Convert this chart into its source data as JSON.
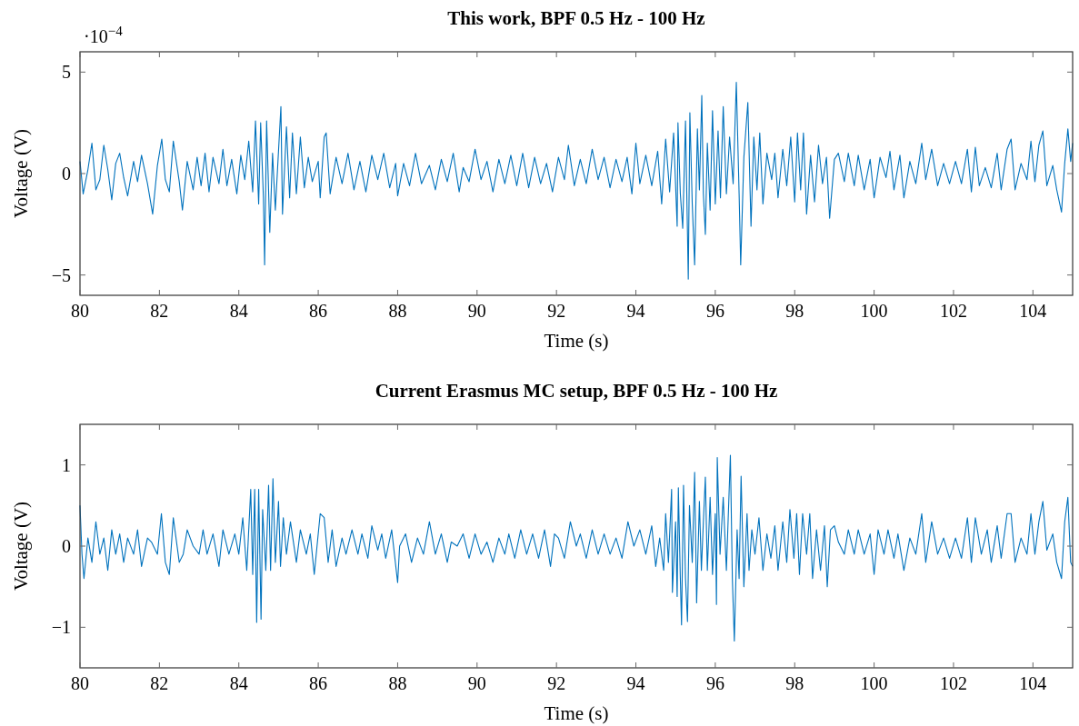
{
  "chart_data": [
    {
      "type": "line",
      "title": "This work, BPF 0.5 Hz - 100 Hz",
      "xlabel": "Time (s)",
      "ylabel": "Voltage (V)",
      "annotations": [
        "·10$^{−4}$"
      ],
      "xlim": [
        80,
        105
      ],
      "xticks": [
        80,
        82,
        84,
        86,
        88,
        90,
        92,
        94,
        96,
        98,
        100,
        102,
        104
      ],
      "ylim": [
        -6,
        6
      ],
      "yticks": [
        -5,
        0,
        5
      ],
      "x": [
        80.0,
        80.08,
        80.2,
        80.3,
        80.4,
        80.5,
        80.6,
        80.7,
        80.8,
        80.9,
        81.0,
        81.1,
        81.2,
        81.35,
        81.45,
        81.55,
        81.7,
        81.83,
        81.95,
        82.06,
        82.15,
        82.25,
        82.35,
        82.5,
        82.58,
        82.7,
        82.85,
        82.95,
        83.05,
        83.15,
        83.25,
        83.35,
        83.5,
        83.6,
        83.7,
        83.82,
        83.95,
        84.05,
        84.15,
        84.25,
        84.35,
        84.42,
        84.5,
        84.55,
        84.62,
        84.65,
        84.7,
        84.78,
        84.85,
        84.92,
        85.06,
        85.1,
        85.2,
        85.28,
        85.35,
        85.45,
        85.55,
        85.65,
        85.75,
        85.85,
        86.0,
        86.05,
        86.15,
        86.2,
        86.3,
        86.45,
        86.6,
        86.75,
        86.9,
        87.05,
        87.2,
        87.35,
        87.5,
        87.65,
        87.8,
        87.95,
        88.0,
        88.15,
        88.3,
        88.45,
        88.6,
        88.8,
        88.95,
        89.1,
        89.25,
        89.4,
        89.55,
        89.65,
        89.8,
        89.95,
        90.1,
        90.25,
        90.4,
        90.55,
        90.7,
        90.85,
        91.0,
        91.15,
        91.3,
        91.45,
        91.6,
        91.75,
        91.9,
        92.05,
        92.2,
        92.3,
        92.45,
        92.6,
        92.75,
        92.9,
        93.05,
        93.2,
        93.35,
        93.5,
        93.65,
        93.78,
        93.9,
        94.0,
        94.1,
        94.25,
        94.4,
        94.55,
        94.65,
        94.75,
        94.85,
        94.95,
        95.04,
        95.06,
        95.12,
        95.18,
        95.25,
        95.32,
        95.36,
        95.42,
        95.48,
        95.55,
        95.6,
        95.66,
        95.7,
        95.75,
        95.8,
        95.87,
        95.93,
        96.0,
        96.07,
        96.13,
        96.2,
        96.28,
        96.36,
        96.45,
        96.53,
        96.6,
        96.64,
        96.72,
        96.82,
        96.9,
        96.97,
        97.05,
        97.12,
        97.2,
        97.3,
        97.42,
        97.5,
        97.58,
        97.7,
        97.8,
        97.9,
        98.0,
        98.07,
        98.15,
        98.22,
        98.3,
        98.4,
        98.5,
        98.6,
        98.7,
        98.8,
        98.88,
        99.0,
        99.1,
        99.25,
        99.35,
        99.5,
        99.6,
        99.75,
        99.9,
        100.0,
        100.15,
        100.3,
        100.4,
        100.5,
        100.65,
        100.75,
        100.9,
        101.05,
        101.2,
        101.3,
        101.45,
        101.6,
        101.75,
        101.9,
        102.05,
        102.2,
        102.35,
        102.45,
        102.55,
        102.65,
        102.8,
        102.95,
        103.1,
        103.2,
        103.35,
        103.45,
        103.55,
        103.7,
        103.85,
        103.95,
        104.05,
        104.15,
        104.25,
        104.35,
        104.5,
        104.6,
        104.72,
        104.8,
        104.88,
        104.95,
        105.0
      ],
      "series": [
        {
          "color": "#0072bd",
          "values": [
            0.6,
            -1.0,
            0.2,
            1.5,
            -0.8,
            -0.3,
            1.4,
            0.2,
            -1.3,
            0.5,
            1.0,
            -0.2,
            -1.1,
            0.6,
            -0.4,
            0.9,
            -0.5,
            -2.0,
            0.4,
            1.7,
            -0.3,
            -0.9,
            1.6,
            -0.4,
            -1.8,
            0.6,
            -0.8,
            0.8,
            -0.6,
            1.0,
            -0.9,
            0.8,
            -0.5,
            1.2,
            -0.6,
            0.7,
            -1.0,
            0.9,
            -0.3,
            1.6,
            -0.9,
            2.6,
            -1.5,
            2.5,
            -1.2,
            -4.5,
            2.6,
            -2.9,
            1.0,
            -1.8,
            3.3,
            -2.0,
            2.3,
            -1.2,
            2.0,
            -1.0,
            1.8,
            -0.7,
            0.8,
            -0.4,
            0.6,
            -1.2,
            1.8,
            2.0,
            -1.0,
            0.8,
            -0.5,
            1.0,
            -0.8,
            0.6,
            -0.9,
            0.9,
            -0.3,
            1.0,
            -0.7,
            0.5,
            -1.1,
            0.5,
            -0.6,
            1.0,
            -0.5,
            0.4,
            -0.8,
            0.7,
            -0.4,
            1.0,
            -0.9,
            0.3,
            -0.4,
            1.2,
            -0.3,
            0.6,
            -0.9,
            0.7,
            -0.5,
            0.9,
            -0.6,
            1.0,
            -0.7,
            0.8,
            -0.5,
            0.5,
            -0.9,
            0.8,
            -0.3,
            1.4,
            -0.6,
            0.7,
            -0.5,
            1.2,
            -0.3,
            0.8,
            -0.7,
            0.7,
            -0.4,
            0.8,
            -1.0,
            1.5,
            -0.5,
            0.9,
            -0.6,
            1.1,
            -1.5,
            1.7,
            -0.9,
            2.0,
            -2.6,
            2.5,
            -1.0,
            -2.7,
            2.6,
            -5.2,
            3.0,
            -1.5,
            -4.5,
            2.2,
            -0.8,
            3.85,
            -1.0,
            -3.0,
            1.5,
            -1.8,
            3.1,
            -1.5,
            2.1,
            -1.2,
            3.3,
            -1.0,
            1.8,
            -0.5,
            4.5,
            -1.0,
            -4.5,
            0.8,
            3.5,
            -2.6,
            1.8,
            -0.8,
            2.0,
            -1.5,
            1.0,
            -0.3,
            1.0,
            -1.2,
            1.2,
            -0.6,
            1.8,
            -1.4,
            2.0,
            -0.8,
            2.0,
            -2.0,
            0.9,
            -1.4,
            1.4,
            -0.5,
            0.8,
            -2.2,
            0.7,
            1.0,
            -0.4,
            1.0,
            -0.6,
            0.9,
            -0.8,
            0.7,
            -1.2,
            0.8,
            -0.2,
            1.1,
            -0.8,
            0.9,
            -1.2,
            0.6,
            -0.5,
            1.5,
            -0.3,
            1.2,
            -0.6,
            0.5,
            -0.5,
            0.6,
            -0.5,
            1.2,
            -0.9,
            1.3,
            -0.6,
            0.3,
            -0.7,
            1.0,
            -0.8,
            1.2,
            1.7,
            -0.8,
            0.5,
            -0.3,
            1.6,
            -0.4,
            1.4,
            2.1,
            -0.6,
            0.4,
            -0.8,
            -1.9,
            0.5,
            2.2,
            0.6,
            1.5
          ]
        }
      ]
    },
    {
      "type": "line",
      "title": "Current Erasmus MC setup, BPF 0.5 Hz - 100 Hz",
      "xlabel": "Time (s)",
      "ylabel": "Voltage (V)",
      "xlim": [
        80,
        105
      ],
      "xticks": [
        80,
        82,
        84,
        86,
        88,
        90,
        92,
        94,
        96,
        98,
        100,
        102,
        104
      ],
      "ylim": [
        -1.5,
        1.5
      ],
      "yticks": [
        -1,
        0,
        1
      ],
      "x": [
        80.0,
        80.05,
        80.1,
        80.2,
        80.3,
        80.4,
        80.5,
        80.6,
        80.7,
        80.8,
        80.9,
        81.0,
        81.1,
        81.2,
        81.35,
        81.45,
        81.55,
        81.7,
        81.8,
        81.95,
        82.05,
        82.15,
        82.25,
        82.35,
        82.5,
        82.6,
        82.7,
        82.85,
        83.0,
        83.1,
        83.2,
        83.35,
        83.5,
        83.6,
        83.75,
        83.9,
        84.0,
        84.1,
        84.2,
        84.3,
        84.35,
        84.4,
        84.45,
        84.5,
        84.56,
        84.6,
        84.68,
        84.75,
        84.8,
        84.86,
        84.92,
        85.0,
        85.05,
        85.12,
        85.2,
        85.3,
        85.45,
        85.55,
        85.7,
        85.8,
        85.9,
        86.05,
        86.15,
        86.25,
        86.35,
        86.45,
        86.6,
        86.7,
        86.85,
        87.0,
        87.1,
        87.25,
        87.35,
        87.5,
        87.6,
        87.7,
        87.85,
        88.0,
        88.05,
        88.2,
        88.35,
        88.5,
        88.65,
        88.8,
        88.95,
        89.1,
        89.25,
        89.35,
        89.5,
        89.65,
        89.8,
        89.95,
        90.1,
        90.25,
        90.4,
        90.55,
        90.7,
        90.8,
        90.95,
        91.1,
        91.25,
        91.4,
        91.55,
        91.7,
        91.85,
        91.95,
        92.05,
        92.2,
        92.35,
        92.5,
        92.6,
        92.75,
        92.9,
        93.05,
        93.2,
        93.35,
        93.5,
        93.65,
        93.8,
        93.95,
        94.1,
        94.25,
        94.4,
        94.5,
        94.6,
        94.7,
        94.75,
        94.82,
        94.9,
        94.92,
        95.0,
        95.04,
        95.07,
        95.12,
        95.15,
        95.2,
        95.25,
        95.3,
        95.35,
        95.42,
        95.48,
        95.53,
        95.6,
        95.65,
        95.7,
        95.75,
        95.8,
        95.87,
        95.93,
        96.0,
        96.03,
        96.05,
        96.12,
        96.2,
        96.28,
        96.38,
        96.43,
        96.48,
        96.55,
        96.6,
        96.65,
        96.72,
        96.8,
        96.85,
        96.92,
        97.0,
        97.1,
        97.2,
        97.3,
        97.4,
        97.5,
        97.58,
        97.7,
        97.8,
        97.88,
        97.98,
        98.05,
        98.12,
        98.2,
        98.3,
        98.38,
        98.45,
        98.55,
        98.65,
        98.75,
        98.82,
        98.9,
        99.0,
        99.1,
        99.25,
        99.35,
        99.5,
        99.6,
        99.75,
        99.9,
        100.0,
        100.1,
        100.25,
        100.35,
        100.5,
        100.6,
        100.75,
        100.9,
        101.05,
        101.2,
        101.3,
        101.45,
        101.6,
        101.75,
        101.9,
        102.05,
        102.2,
        102.35,
        102.45,
        102.55,
        102.7,
        102.85,
        102.95,
        103.1,
        103.2,
        103.35,
        103.45,
        103.55,
        103.7,
        103.85,
        103.95,
        104.05,
        104.15,
        104.25,
        104.35,
        104.5,
        104.6,
        104.72,
        104.8,
        104.88,
        104.95,
        105.0
      ],
      "series": [
        {
          "color": "#0072bd",
          "values": [
            0.5,
            -0.1,
            -0.4,
            0.1,
            -0.2,
            0.3,
            -0.1,
            0.1,
            -0.3,
            0.2,
            -0.1,
            0.15,
            -0.2,
            0.1,
            -0.1,
            0.2,
            -0.25,
            0.1,
            0.05,
            -0.1,
            0.4,
            -0.2,
            -0.35,
            0.35,
            -0.2,
            -0.1,
            0.2,
            0.0,
            -0.1,
            0.2,
            -0.1,
            0.15,
            -0.25,
            0.2,
            -0.1,
            0.15,
            -0.1,
            0.35,
            -0.3,
            0.7,
            -0.35,
            0.7,
            -0.94,
            0.7,
            -0.9,
            0.45,
            -0.3,
            0.75,
            -0.3,
            0.83,
            -0.2,
            0.55,
            -0.25,
            0.35,
            -0.1,
            0.3,
            -0.2,
            0.2,
            -0.1,
            0.15,
            -0.35,
            0.4,
            0.35,
            -0.2,
            0.2,
            -0.25,
            0.1,
            -0.1,
            0.2,
            -0.1,
            0.15,
            -0.15,
            0.25,
            -0.05,
            0.15,
            -0.15,
            0.2,
            -0.45,
            0.0,
            0.15,
            -0.2,
            0.1,
            -0.1,
            0.3,
            -0.1,
            0.15,
            -0.2,
            0.05,
            0.0,
            0.15,
            -0.15,
            0.15,
            -0.1,
            0.05,
            -0.2,
            0.1,
            -0.1,
            0.15,
            -0.15,
            0.2,
            -0.1,
            0.15,
            -0.15,
            0.2,
            -0.25,
            0.15,
            0.1,
            -0.15,
            0.3,
            0.0,
            0.15,
            -0.15,
            0.2,
            -0.1,
            0.15,
            -0.1,
            0.1,
            -0.15,
            0.3,
            0.0,
            0.2,
            -0.1,
            0.25,
            -0.25,
            0.1,
            -0.3,
            0.4,
            -0.2,
            0.7,
            -0.57,
            0.3,
            -0.62,
            0.72,
            -0.4,
            -0.97,
            0.75,
            -0.4,
            -0.93,
            0.5,
            -0.2,
            0.91,
            -0.7,
            0.55,
            -0.3,
            0.3,
            0.85,
            -0.3,
            0.6,
            -0.35,
            0.4,
            -0.72,
            1.09,
            -0.1,
            0.6,
            -0.3,
            1.12,
            -0.4,
            -1.17,
            0.2,
            -0.4,
            0.86,
            -0.5,
            0.4,
            -0.3,
            0.2,
            -0.1,
            0.35,
            -0.3,
            0.15,
            -0.15,
            0.25,
            -0.3,
            0.3,
            -0.2,
            0.45,
            -0.15,
            0.4,
            -0.35,
            0.4,
            -0.1,
            0.4,
            -0.4,
            0.2,
            -0.3,
            0.25,
            -0.5,
            0.2,
            0.25,
            0.05,
            -0.1,
            0.2,
            -0.1,
            0.2,
            -0.1,
            0.15,
            -0.35,
            0.2,
            -0.1,
            0.2,
            -0.15,
            0.15,
            -0.3,
            0.1,
            -0.1,
            0.4,
            -0.2,
            0.3,
            -0.1,
            0.1,
            -0.15,
            0.1,
            -0.15,
            0.35,
            -0.2,
            0.35,
            -0.1,
            0.2,
            -0.2,
            0.25,
            -0.15,
            0.4,
            0.4,
            -0.2,
            0.1,
            -0.1,
            0.4,
            -0.1,
            0.3,
            0.55,
            -0.05,
            0.15,
            -0.2,
            -0.4,
            0.3,
            0.6,
            -0.2,
            -0.25
          ]
        }
      ]
    }
  ]
}
